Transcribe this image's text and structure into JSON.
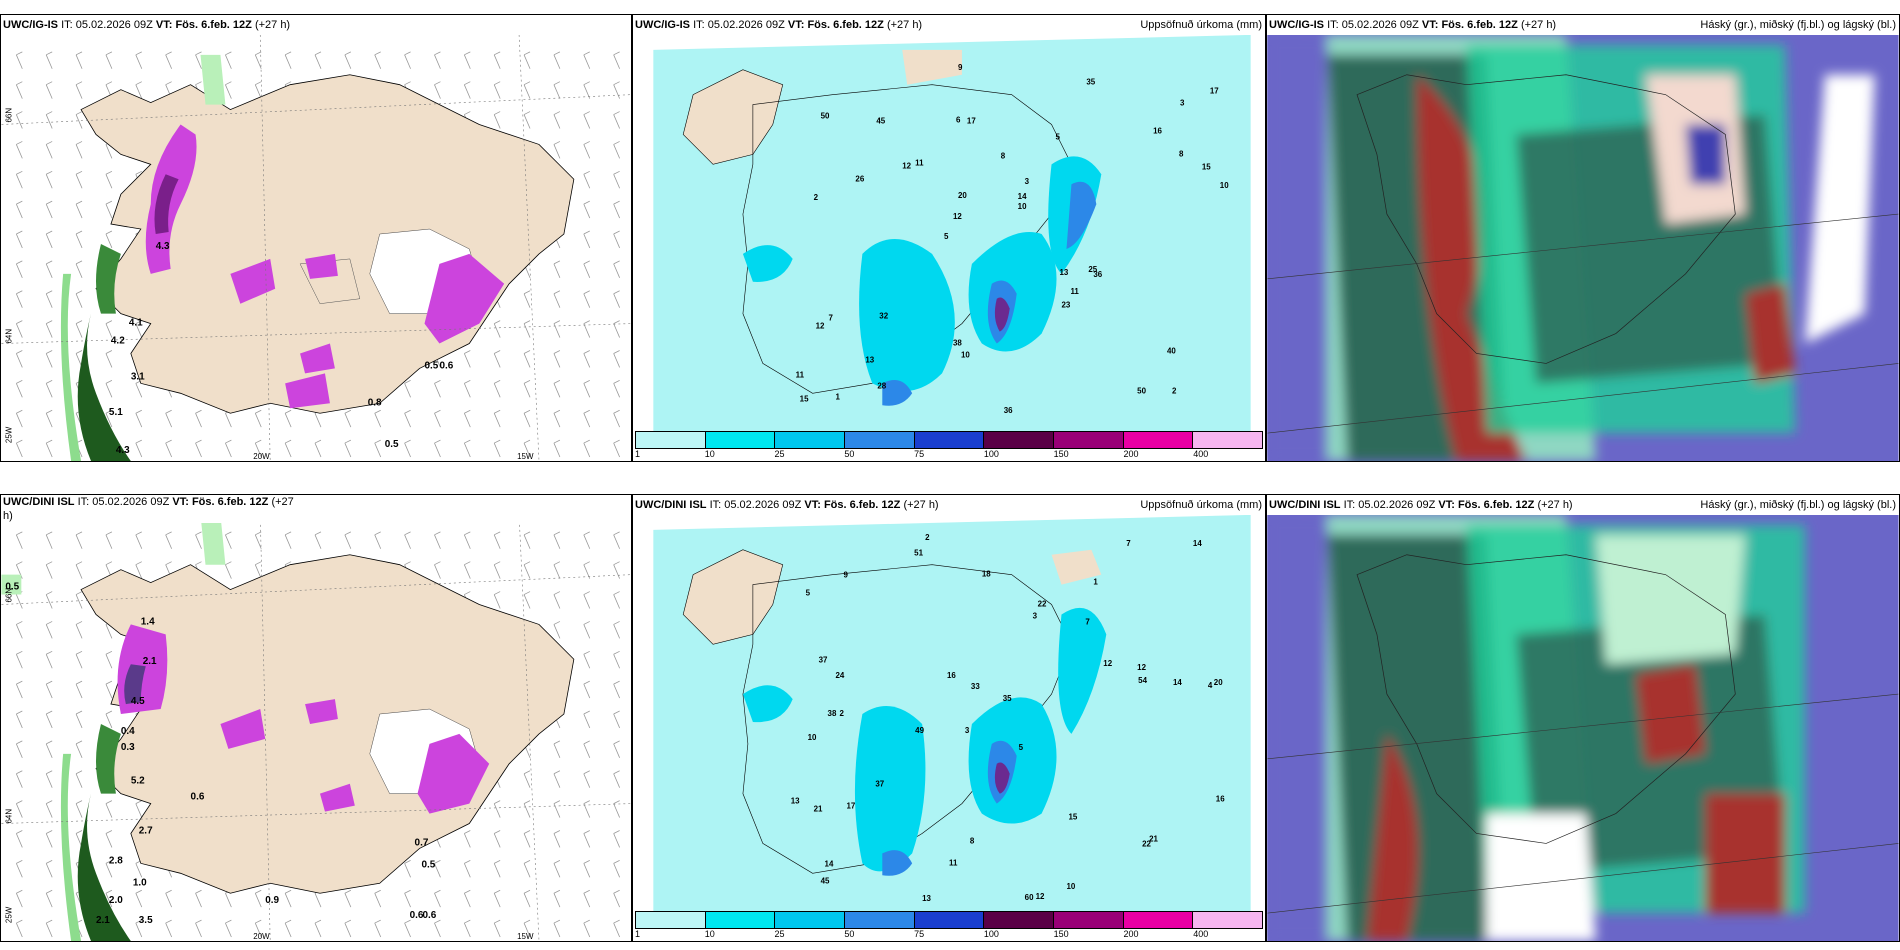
{
  "panels": [
    {
      "id": "p1",
      "model": "UWC/IG-IS",
      "it_label": "IT:",
      "it": "05.02.2026 09Z",
      "vt_label": "VT:",
      "vt": "Fös. 6.feb. 12Z",
      "lead": "(+27 h)",
      "right_title": "",
      "lat_label": "66N",
      "lat2_label": "64N",
      "lon_labels": [
        "25W",
        "20W",
        "15W"
      ],
      "values": [
        "5.1",
        "4.3",
        "4.2",
        "4.1",
        "3.1",
        "4.3",
        "0.5",
        "0.8",
        "0.5",
        "0.6"
      ]
    },
    {
      "id": "p2",
      "model": "UWC/IG-IS",
      "it_label": "IT:",
      "it": "05.02.2026 09Z",
      "vt_label": "VT:",
      "vt": "Fös. 6.feb. 12Z",
      "lead": "(+27 h)",
      "right_title": "Uppsöfnuð úrkoma (mm)",
      "values": [
        "2",
        "2",
        "3",
        "5",
        "5",
        "1",
        "6",
        "8",
        "7",
        "11",
        "11",
        "13",
        "17",
        "3",
        "36",
        "50",
        "9",
        "10",
        "13",
        "8",
        "12",
        "38",
        "20",
        "45",
        "35",
        "32",
        "50",
        "40",
        "25",
        "36",
        "12",
        "26",
        "23",
        "28",
        "15",
        "14",
        "15",
        "10",
        "10",
        "12",
        "16",
        "17",
        "11"
      ]
    },
    {
      "id": "p3",
      "model": "UWC/IG-IS",
      "it_label": "IT:",
      "it": "05.02.2026 09Z",
      "vt_label": "VT:",
      "vt": "Fös. 6.feb. 12Z",
      "lead": "(+27 h)",
      "right_title": "Háský (gr.), miðský (fj.bl.) og lágský (bl.)"
    },
    {
      "id": "p4",
      "model": "UWC/DINI ISL",
      "it_label": "IT:",
      "it": "05.02.2026 09Z",
      "vt_label": "VT:",
      "vt": "Fös. 6.feb. 12Z",
      "lead": "(+27",
      "lead2": "h)",
      "right_title": "",
      "lat_label": "66N",
      "lat2_label": "64N",
      "lon_labels": [
        "25W",
        "20W",
        "15W"
      ],
      "values": [
        "0.5",
        "2.1",
        "2.0",
        "4.5",
        "0.4",
        "0.3",
        "5.2",
        "0.6",
        "2.7",
        "2.8",
        "1.0",
        "3.5",
        "2.1",
        "0.7",
        "0.5",
        "0.9",
        "0.6",
        "0.6",
        "1.4"
      ]
    },
    {
      "id": "p5",
      "model": "UWC/DINI ISL",
      "it_label": "IT:",
      "it": "05.02.2026 09Z",
      "vt_label": "VT:",
      "vt": "Fös. 6.feb. 12Z",
      "lead": "(+27 h)",
      "right_title": "Uppsöfnuð úrkoma (mm)",
      "values": [
        "2",
        "1",
        "4",
        "3",
        "5",
        "2",
        "5",
        "7",
        "10",
        "3",
        "35",
        "45",
        "51",
        "49",
        "60",
        "12",
        "8",
        "7",
        "12",
        "37",
        "24",
        "38",
        "20",
        "14",
        "13",
        "37",
        "33",
        "54",
        "21",
        "21",
        "22",
        "22",
        "17",
        "16",
        "15",
        "16",
        "12",
        "11",
        "14",
        "18",
        "14",
        "13",
        "10",
        "9"
      ]
    },
    {
      "id": "p6",
      "model": "UWC/DINI ISL",
      "it_label": "IT:",
      "it": "05.02.2026 09Z",
      "vt_label": "VT:",
      "vt": "Fös. 6.feb. 12Z",
      "lead": "(+27 h)",
      "right_title": "Háský (gr.), miðský (fj.bl.) og lágský (bl.)"
    }
  ],
  "colorbar": {
    "labels": [
      "1",
      "10",
      "25",
      "50",
      "75",
      "100",
      "150",
      "200",
      "400"
    ],
    "colors": [
      "#bdf6f6",
      "#00e7f0",
      "#00c7ef",
      "#2c88e8",
      "#1a3ecf",
      "#5a0046",
      "#990077",
      "#e900a4",
      "#f6b6f0"
    ]
  },
  "colors": {
    "land": "#f0dfca",
    "precip_light": "#aef4f4",
    "precip_mid": "#00d8ef",
    "cloud_low": "#6a66c8",
    "cloud_mid": "#2d6a5a",
    "cloud_high": "#1fcf9a",
    "snow_purple": "#cc44dd",
    "green_dark": "#1e5a1e"
  }
}
